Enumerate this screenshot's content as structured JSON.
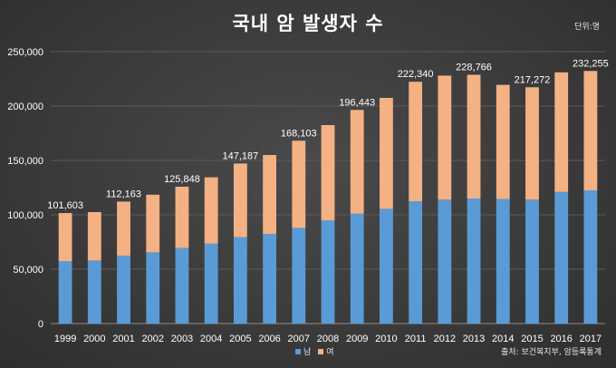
{
  "header": {
    "title": "국내 암 발생자 수",
    "unit": "단위:명"
  },
  "footer": {
    "source": "출처: 보건복지부, 암등록통계"
  },
  "colors": {
    "male": "#5b9bd5",
    "female": "#f4b183",
    "gridline": "#5a5a5a",
    "axis": "#8c8c8c"
  },
  "chart_data": {
    "type": "bar",
    "stacked": true,
    "categories": [
      "1999",
      "2000",
      "2001",
      "2002",
      "2003",
      "2004",
      "2005",
      "2006",
      "2007",
      "2008",
      "2009",
      "2010",
      "2011",
      "2012",
      "2013",
      "2014",
      "2015",
      "2016",
      "2017"
    ],
    "series": [
      {
        "name": "남",
        "values": [
          57500,
          58000,
          62500,
          65500,
          69500,
          73500,
          79500,
          82500,
          88000,
          95000,
          101000,
          105500,
          112500,
          114000,
          115000,
          114500,
          114000,
          121000,
          122500
        ]
      },
      {
        "name": "여",
        "values": [
          44103,
          44500,
          49663,
          53000,
          56348,
          61000,
          67687,
          72500,
          80103,
          87500,
          95443,
          102000,
          109840,
          114000,
          113766,
          105000,
          103272,
          110000,
          109755
        ]
      }
    ],
    "totals": [
      101603,
      102500,
      112163,
      118500,
      125848,
      134500,
      147187,
      155000,
      168103,
      182500,
      196443,
      207500,
      222340,
      228000,
      228766,
      219500,
      217272,
      231000,
      232255
    ],
    "data_labels": [
      {
        "index": 0,
        "text": "101,603"
      },
      {
        "index": 2,
        "text": "112,163"
      },
      {
        "index": 4,
        "text": "125,848"
      },
      {
        "index": 6,
        "text": "147,187"
      },
      {
        "index": 8,
        "text": "168,103"
      },
      {
        "index": 10,
        "text": "196,443"
      },
      {
        "index": 12,
        "text": "222,340"
      },
      {
        "index": 14,
        "text": "228,766"
      },
      {
        "index": 16,
        "text": "217,272"
      },
      {
        "index": 18,
        "text": "232,255"
      }
    ],
    "yticks": [
      0,
      50000,
      100000,
      150000,
      200000,
      250000
    ],
    "ytick_labels": [
      "0",
      "50,000",
      "100,000",
      "150,000",
      "200,000",
      "250,000"
    ],
    "ylim": [
      0,
      250000
    ],
    "grid": true,
    "legend_position": "bottom"
  }
}
